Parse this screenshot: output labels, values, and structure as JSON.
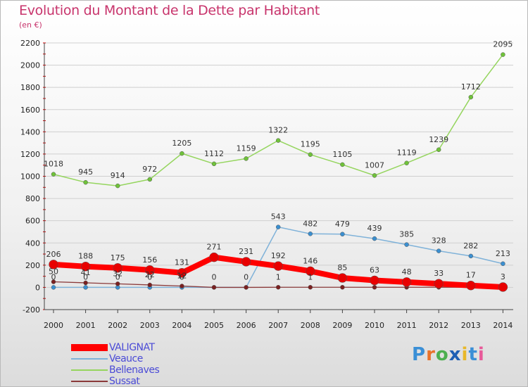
{
  "title": "Evolution du Montant de la Dette par Habitant",
  "subtitle": "(en €)",
  "logo": {
    "text": "Proxiti",
    "letter_colors": [
      "#3a8fd6",
      "#e8722a",
      "#4caf50",
      "#1e5fb4",
      "#e8b82a",
      "#3a8fd6",
      "#e85a9a"
    ]
  },
  "chart_data": {
    "type": "line",
    "x": [
      2000,
      2001,
      2002,
      2003,
      2004,
      2005,
      2006,
      2007,
      2008,
      2009,
      2010,
      2011,
      2012,
      2013,
      2014
    ],
    "ylim": [
      -200,
      2200
    ],
    "yticks": [
      -200,
      0,
      200,
      400,
      600,
      800,
      1000,
      1200,
      1400,
      1600,
      1800,
      2000,
      2200
    ],
    "legend_position": "bottom-left",
    "series": [
      {
        "name": "Bellenaves",
        "color": "#95d55e",
        "point_color": "#6fc23a",
        "values": [
          1018,
          945,
          914,
          972,
          1205,
          1112,
          1159,
          1322,
          1195,
          1105,
          1007,
          1119,
          1239,
          1712,
          2095
        ],
        "labels": [
          "1018",
          "945",
          "914",
          "972",
          "1205",
          "1112",
          "1159",
          "1322",
          "1195",
          "1105",
          "1007",
          "1119",
          "1239",
          "1712",
          "2095"
        ]
      },
      {
        "name": "Veauce",
        "color": "#7fb2d9",
        "point_color": "#3b8fd0",
        "values": [
          0,
          0,
          0,
          0,
          0,
          0,
          0,
          543,
          482,
          479,
          439,
          385,
          328,
          282,
          213
        ],
        "labels": [
          "",
          "",
          "",
          "",
          "",
          "0",
          "0",
          "543",
          "482",
          "479",
          "439",
          "385",
          "328",
          "282",
          "213"
        ]
      },
      {
        "name": "Sussat",
        "color": "#8b3a3a",
        "point_color": "#7a2020",
        "values": [
          50,
          41,
          32,
          22,
          12,
          0,
          0,
          1,
          1,
          1,
          1,
          1,
          1,
          1,
          1
        ],
        "labels": [
          "50",
          "41",
          "32",
          "22",
          "12",
          "",
          "",
          "1",
          "1",
          "",
          "",
          "",
          "",
          "",
          ""
        ]
      },
      {
        "name": "VALIGNAT",
        "color": "#ff0000",
        "point_color": "#e80000",
        "values": [
          206,
          188,
          175,
          156,
          131,
          271,
          231,
          192,
          146,
          85,
          63,
          48,
          33,
          17,
          3
        ],
        "labels": [
          "206",
          "188",
          "175",
          "156",
          "131",
          "271",
          "231",
          "192",
          "146",
          "85",
          "63",
          "48",
          "33",
          "17",
          "3"
        ]
      }
    ],
    "extra_labels": [
      "0",
      "0",
      "0",
      "0",
      "0"
    ]
  },
  "legend": [
    {
      "name": "VALIGNAT",
      "color": "#ff0000",
      "thickness": 10
    },
    {
      "name": "Veauce",
      "color": "#7fb2d9",
      "thickness": 2
    },
    {
      "name": "Bellenaves",
      "color": "#95d55e",
      "thickness": 2
    },
    {
      "name": "Sussat",
      "color": "#8b3a3a",
      "thickness": 2
    }
  ],
  "legend_text_color": "#4b4bd6"
}
